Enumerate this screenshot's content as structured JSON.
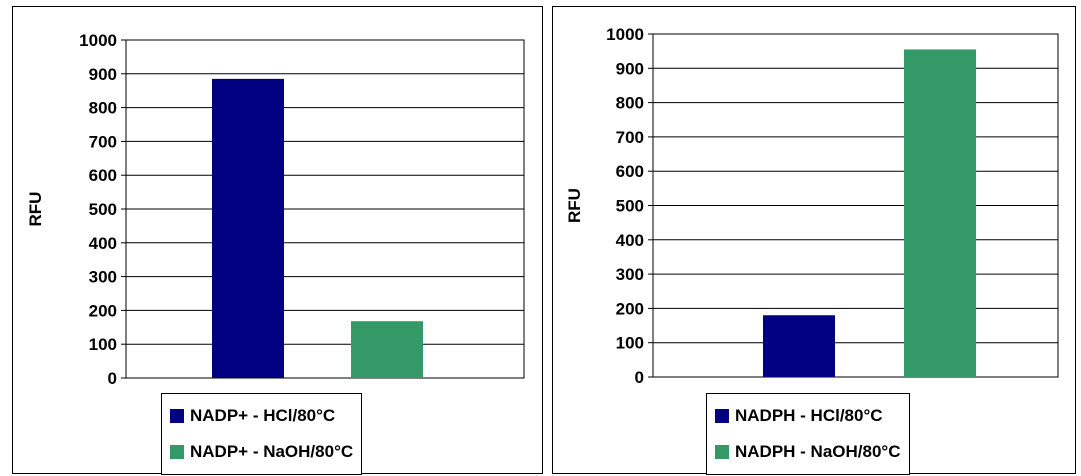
{
  "colors": {
    "series_a": "#000080",
    "series_b": "#339966"
  },
  "chart_data": [
    {
      "type": "bar",
      "ylabel": "RFU",
      "ylim": [
        0,
        1000
      ],
      "yticks": [
        0,
        100,
        200,
        300,
        400,
        500,
        600,
        700,
        800,
        900,
        1000
      ],
      "grid": true,
      "legend_position": "bottom",
      "series": [
        {
          "name": "NADP+ - HCl/80°C",
          "value": 885
        },
        {
          "name": "NADP+ - NaOH/80°C",
          "value": 168
        }
      ]
    },
    {
      "type": "bar",
      "ylabel": "RFU",
      "ylim": [
        0,
        1000
      ],
      "yticks": [
        0,
        100,
        200,
        300,
        400,
        500,
        600,
        700,
        800,
        900,
        1000
      ],
      "grid": true,
      "legend_position": "bottom",
      "series": [
        {
          "name": "NADPH - HCl/80°C",
          "value": 180
        },
        {
          "name": "NADPH - NaOH/80°C",
          "value": 955
        }
      ]
    }
  ]
}
